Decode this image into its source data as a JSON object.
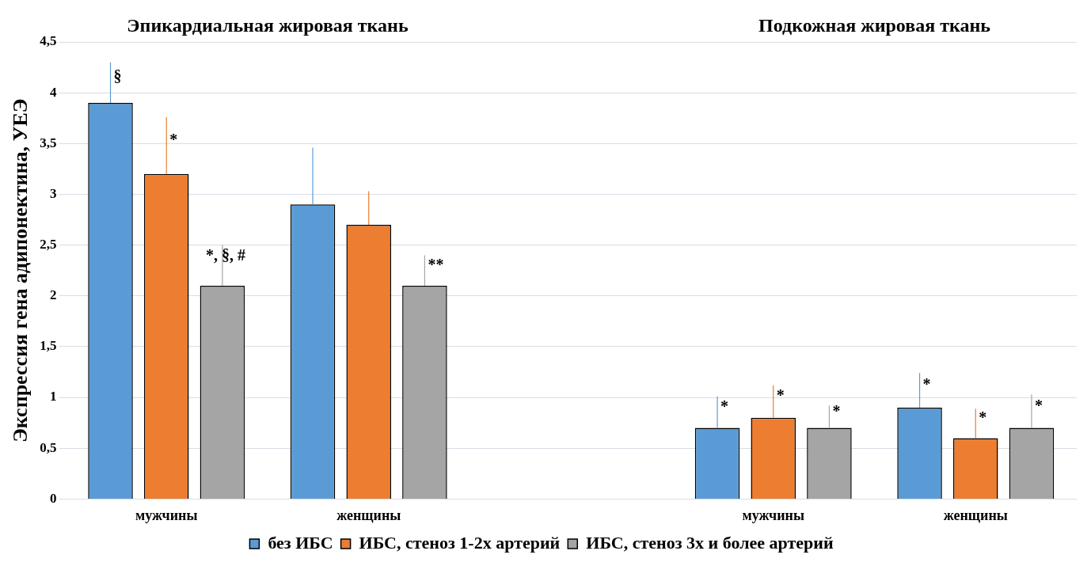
{
  "chart_data": {
    "type": "bar",
    "ylabel": "Экспрессия гена адипонектина, УЕЭ",
    "annotations": [
      "Эпикардиальная жировая ткань",
      "Подкожная жировая ткань"
    ],
    "categories": [
      "мужчины",
      "женщины",
      null,
      "мужчины",
      "женщины"
    ],
    "series": [
      {
        "name": "без ИБС",
        "color": "#5b9bd5",
        "values": [
          3.9,
          2.9,
          null,
          0.7,
          0.9
        ],
        "errors": [
          [
            3.9,
            4.3
          ],
          [
            2.9,
            3.46
          ],
          null,
          [
            0.7,
            1.01
          ],
          [
            0.9,
            1.24
          ]
        ],
        "value_labels": [
          "§",
          null,
          null,
          "*",
          "*"
        ]
      },
      {
        "name": "ИБС, стеноз 1-2х артерий",
        "color": "#ed7d31",
        "values": [
          3.2,
          2.7,
          null,
          0.8,
          0.6
        ],
        "errors": [
          [
            3.2,
            3.76
          ],
          [
            2.7,
            3.03
          ],
          null,
          [
            0.8,
            1.12
          ],
          [
            0.6,
            0.89
          ]
        ],
        "value_labels": [
          "*",
          null,
          null,
          "*",
          "*"
        ]
      },
      {
        "name": "ИБС, стеноз 3х и более артерий",
        "color": "#a5a5a5",
        "values": [
          2.1,
          2.1,
          null,
          0.7,
          0.7
        ],
        "errors": [
          [
            2.1,
            2.5
          ],
          [
            2.1,
            2.4
          ],
          null,
          [
            0.7,
            0.92
          ],
          [
            0.7,
            1.03
          ]
        ],
        "value_labels": [
          "*, §, #",
          "**",
          null,
          "*",
          "*"
        ]
      }
    ],
    "ylim": [
      0,
      4.5
    ],
    "yticks": [
      0,
      {
        "value": 0.5,
        "label": "0,5"
      },
      1,
      {
        "value": 1.5,
        "label": "1,5"
      },
      2,
      {
        "value": 2.5,
        "label": "2,5"
      },
      3,
      {
        "value": 3.5,
        "label": "3,5"
      },
      4,
      {
        "value": 4.5,
        "label": "4,5"
      }
    ],
    "grid": "y",
    "legend": "bottom"
  }
}
